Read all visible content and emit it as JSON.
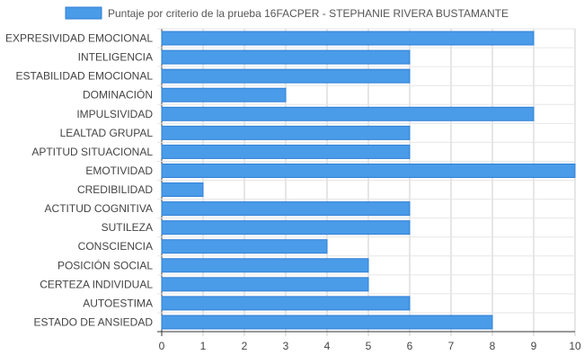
{
  "chart_data": {
    "type": "bar",
    "orientation": "horizontal",
    "series": [
      {
        "name": "Puntaje por criterio de la prueba 16FACPER - STEPHANIE RIVERA BUSTAMANTE",
        "values": [
          9,
          6,
          6,
          3,
          9,
          6,
          6,
          10,
          1,
          6,
          6,
          4,
          5,
          5,
          6,
          8
        ]
      }
    ],
    "categories": [
      "EXPRESIVIDAD EMOCIONAL",
      "INTELIGENCIA",
      "ESTABILIDAD EMOCIONAL",
      "DOMINACIÓN",
      "IMPULSIVIDAD",
      "LEALTAD GRUPAL",
      "APTITUD SITUACIONAL",
      "EMOTIVIDAD",
      "CREDIBILIDAD",
      "ACTITUD COGNITIVA",
      "SUTILEZA",
      "CONSCIENCIA",
      "POSICIÓN SOCIAL",
      "CERTEZA INDIVIDUAL",
      "AUTOESTIMA",
      "ESTADO DE ANSIEDAD"
    ],
    "xlim": [
      0,
      10
    ],
    "x_ticks": [
      "0",
      "1",
      "2",
      "3",
      "4",
      "5",
      "6",
      "7",
      "8",
      "9",
      "10"
    ],
    "grid": true,
    "legend_position": "top",
    "colors": {
      "bar_fill": "#4a9be8",
      "bar_border": "#2f7fd6",
      "grid": "#cccccc",
      "label": "#444444"
    }
  }
}
